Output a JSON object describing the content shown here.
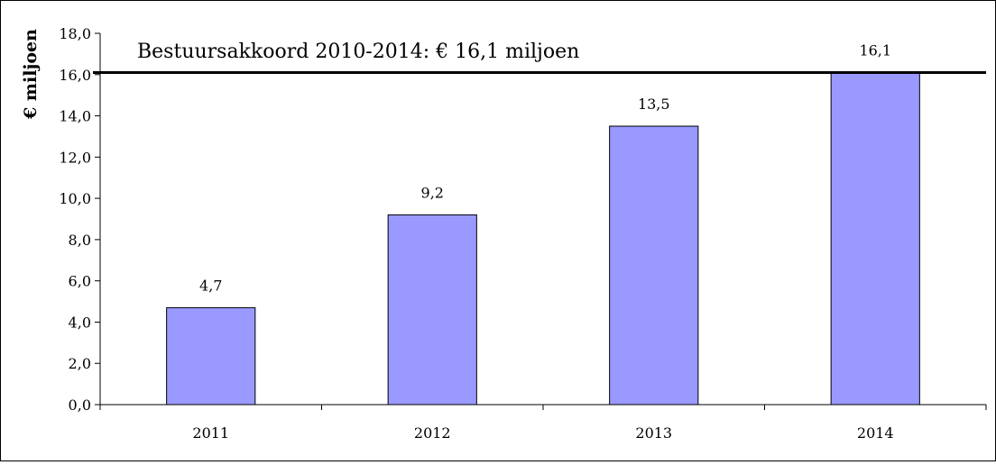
{
  "chart_data": {
    "type": "bar",
    "categories": [
      "2011",
      "2012",
      "2013",
      "2014"
    ],
    "values": [
      4.7,
      9.2,
      13.5,
      16.1
    ],
    "value_labels": [
      "4,7",
      "9,2",
      "13,5",
      "16,1"
    ],
    "ylabel": "€ miljoen",
    "ylim": [
      0,
      18
    ],
    "y_ticks": [
      "0,0",
      "2,0",
      "4,0",
      "6,0",
      "8,0",
      "10,0",
      "12,0",
      "14,0",
      "16,0",
      "18,0"
    ],
    "y_tick_step": 2,
    "reference_line": {
      "value": 16.1,
      "label": "Bestuursakkoord 2010-2014: € 16,1 miljoen"
    },
    "grid": false,
    "bar_color": "#9999ff",
    "bar_edge_color": "#000000"
  }
}
